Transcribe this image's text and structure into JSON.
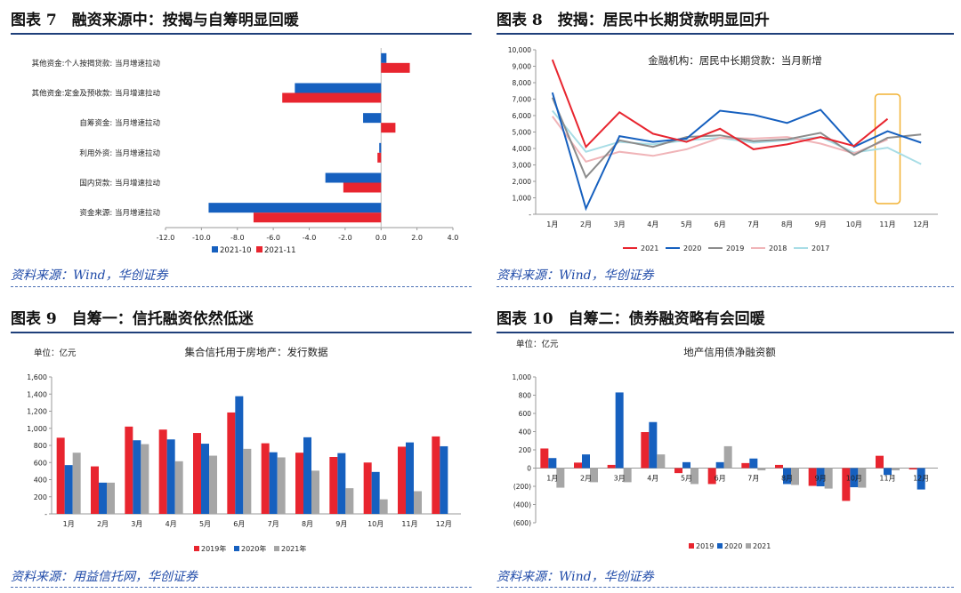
{
  "colors": {
    "red": "#e8252f",
    "blue": "#1660bf",
    "gray": "#a6a6a6",
    "pink": "#f0b4b8",
    "lightblue": "#a8dde6",
    "darkgray": "#8c8c8c",
    "highlight": "#f2b233",
    "title_line": "#1f3f7a",
    "source": "#1f4aa8"
  },
  "panels": {
    "p7": {
      "title": "图表 7　融资来源中：按揭与自筹明显回暖",
      "source": "资料来源：Wind，华创证券"
    },
    "p8": {
      "title": "图表 8　按揭：居民中长期贷款明显回升",
      "source": "资料来源：Wind，华创证券"
    },
    "p9": {
      "title": "图表 9　自筹一：信托融资依然低迷",
      "source": "资料来源：用益信托网，华创证券"
    },
    "p10": {
      "title": "图表 10　自筹二：债券融资略有会回暖",
      "source": "资料来源：Wind，华创证券"
    }
  },
  "chart_data": [
    {
      "id": "p7",
      "type": "bar",
      "orientation": "horizontal",
      "title": "",
      "categories": [
        "其他资金:个人按揭贷款: 当月增速拉动",
        "其他资金:定金及预收款: 当月增速拉动",
        "自筹资金: 当月增速拉动",
        "利用外资: 当月增速拉动",
        "国内贷款: 当月增速拉动",
        "资金来源: 当月增速拉动"
      ],
      "series": [
        {
          "name": "2021-10",
          "color": "#1660bf",
          "values": [
            0.3,
            -4.8,
            -1.0,
            -0.1,
            -3.1,
            -9.6
          ]
        },
        {
          "name": "2021-11",
          "color": "#e8252f",
          "values": [
            1.6,
            -5.5,
            0.8,
            -0.2,
            -2.1,
            -7.1
          ]
        }
      ],
      "xlim": [
        -12,
        4
      ],
      "xticks": [
        "-12.0",
        "-10.0",
        "-8.0",
        "-6.0",
        "-4.0",
        "-2.0",
        "0.0",
        "2.0",
        "4.0"
      ]
    },
    {
      "id": "p8",
      "type": "line",
      "title": "金融机构：居民中长期贷款：当月新增",
      "categories": [
        "1月",
        "2月",
        "3月",
        "4月",
        "5月",
        "6月",
        "7月",
        "8月",
        "9月",
        "10月",
        "11月",
        "12月"
      ],
      "series": [
        {
          "name": "2021",
          "color": "#e8252f",
          "values": [
            9400,
            4100,
            6200,
            4900,
            4400,
            5200,
            3950,
            4250,
            4700,
            4150,
            5800,
            null
          ]
        },
        {
          "name": "2020",
          "color": "#1660bf",
          "values": [
            7400,
            350,
            4750,
            4400,
            4600,
            6300,
            6050,
            5550,
            6350,
            4100,
            5050,
            4350
          ]
        },
        {
          "name": "2019",
          "color": "#8c8c8c",
          "values": [
            7100,
            2250,
            4500,
            4100,
            4700,
            4800,
            4450,
            4550,
            4950,
            3600,
            4650,
            4850
          ]
        },
        {
          "name": "2018",
          "color": "#f0b4b8",
          "values": [
            5950,
            3200,
            3800,
            3550,
            3950,
            4650,
            4600,
            4700,
            4300,
            3700,
            4550,
            null
          ]
        },
        {
          "name": "2017",
          "color": "#a8dde6",
          "values": [
            6300,
            3800,
            4400,
            4250,
            4500,
            4650,
            4350,
            4500,
            4700,
            3750,
            4050,
            3050
          ]
        }
      ],
      "ylim": [
        0,
        10000
      ],
      "yticks": [
        "-",
        "1,000",
        "2,000",
        "3,000",
        "4,000",
        "5,000",
        "6,000",
        "7,000",
        "8,000",
        "9,000",
        "10,000"
      ],
      "highlight_category": "11月"
    },
    {
      "id": "p9",
      "type": "bar",
      "title": "集合信托用于房地产：发行数据",
      "unit": "单位：亿元",
      "categories": [
        "1月",
        "2月",
        "3月",
        "4月",
        "5月",
        "6月",
        "7月",
        "8月",
        "9月",
        "10月",
        "11月",
        "12月"
      ],
      "series": [
        {
          "name": "2019年",
          "color": "#e8252f",
          "values": [
            890,
            555,
            1020,
            985,
            945,
            1185,
            825,
            715,
            665,
            600,
            785,
            905
          ]
        },
        {
          "name": "2020年",
          "color": "#1660bf",
          "values": [
            570,
            365,
            860,
            870,
            820,
            1375,
            720,
            895,
            710,
            490,
            835,
            790
          ]
        },
        {
          "name": "2021年",
          "color": "#a6a6a6",
          "values": [
            715,
            365,
            815,
            615,
            680,
            760,
            660,
            505,
            300,
            170,
            265,
            null
          ]
        }
      ],
      "ylim": [
        0,
        1600
      ],
      "yticks": [
        "-",
        "200",
        "400",
        "600",
        "800",
        "1,000",
        "1,200",
        "1,400",
        "1,600"
      ]
    },
    {
      "id": "p10",
      "type": "bar",
      "title": "地产信用债净融资额",
      "unit": "单位：亿元",
      "categories": [
        "1月",
        "2月",
        "3月",
        "4月",
        "5月",
        "6月",
        "7月",
        "8月",
        "9月",
        "10月",
        "11月",
        "12月"
      ],
      "series": [
        {
          "name": "2019",
          "color": "#e8252f",
          "values": [
            215,
            60,
            35,
            395,
            -55,
            -175,
            55,
            35,
            -195,
            -360,
            135,
            -15
          ]
        },
        {
          "name": "2020",
          "color": "#1660bf",
          "values": [
            110,
            150,
            830,
            505,
            65,
            65,
            105,
            -175,
            -200,
            -210,
            -75,
            -235
          ]
        },
        {
          "name": "2021",
          "color": "#a6a6a6",
          "values": [
            -215,
            -155,
            -155,
            150,
            -175,
            240,
            -25,
            -185,
            -225,
            -215,
            -25,
            null
          ]
        }
      ],
      "ylim": [
        -600,
        1000
      ],
      "yticks": [
        "(600)",
        "(400)",
        "(200)",
        "0",
        "200",
        "400",
        "600",
        "800",
        "1,000"
      ]
    }
  ]
}
